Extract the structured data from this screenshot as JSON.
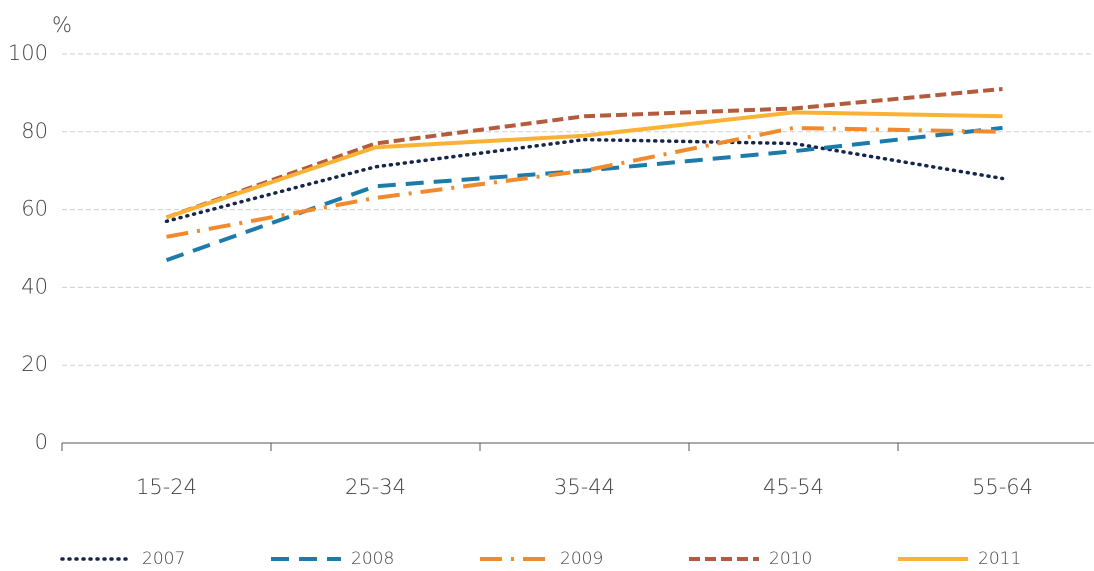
{
  "chart_data": {
    "type": "line",
    "y_label": "%",
    "categories": [
      "15-24",
      "25-34",
      "35-44",
      "45-54",
      "55-64"
    ],
    "series": [
      {
        "name": "2007",
        "color": "#16254a",
        "dash": "1 6",
        "values": [
          57,
          71,
          78,
          77,
          68
        ]
      },
      {
        "name": "2008",
        "color": "#1b7bab",
        "dash": "18 10",
        "values": [
          47,
          66,
          70,
          75,
          81
        ]
      },
      {
        "name": "2009",
        "color": "#f08a2c",
        "dash": "22 9 3 9",
        "values": [
          53,
          63,
          70,
          81,
          80
        ]
      },
      {
        "name": "2010",
        "color": "#b25b3e",
        "dash": "11 5",
        "values": [
          58,
          77,
          84,
          86,
          91
        ]
      },
      {
        "name": "2011",
        "color": "#f9b233",
        "dash": "none",
        "values": [
          58,
          76,
          79,
          85,
          84
        ]
      }
    ],
    "ylim": [
      0,
      100
    ],
    "yticks": [
      0,
      20,
      40,
      60,
      80,
      100
    ],
    "grid": true
  }
}
